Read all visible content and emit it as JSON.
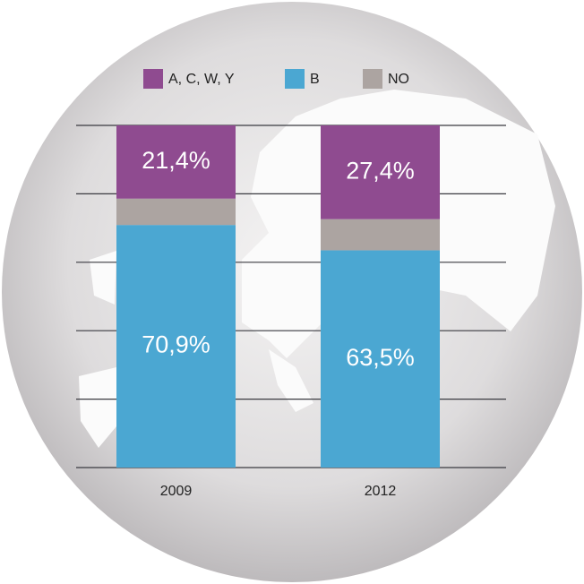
{
  "chart_data": {
    "type": "stacked_bar",
    "categories": [
      "2009",
      "2012"
    ],
    "series": [
      {
        "name": "B",
        "color": "#4ba7d2",
        "values": [
          70.9,
          63.5
        ],
        "value_labels": [
          "70,9%",
          "63,5%"
        ]
      },
      {
        "name": "NO",
        "color": "#aca4a1",
        "values": [
          7.7,
          9.1
        ]
      },
      {
        "name": "A, C, W, Y",
        "color": "#8f4b90",
        "values": [
          21.4,
          27.4
        ],
        "value_labels": [
          "21,4%",
          "27,4%"
        ]
      }
    ],
    "ylim": [
      0,
      100
    ],
    "yticks": [
      0,
      20,
      40,
      60,
      80,
      100
    ],
    "grid": true
  }
}
